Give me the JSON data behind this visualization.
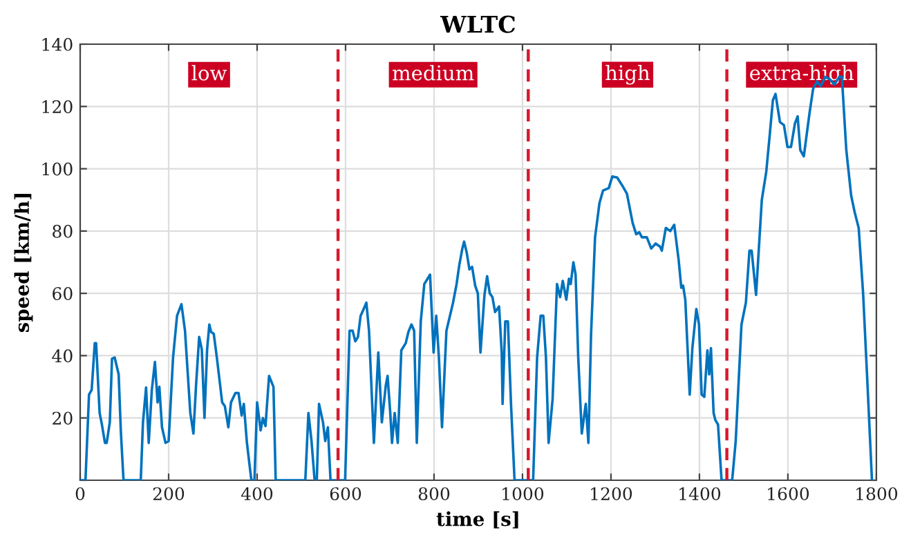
{
  "chart_data": {
    "type": "line",
    "title": "WLTC",
    "xlabel": "time [s]",
    "ylabel": "speed [km/h]",
    "x": [
      0,
      12,
      20,
      26,
      33,
      36,
      44,
      49,
      56,
      60,
      67,
      72,
      78,
      87,
      92,
      98,
      137,
      142,
      149,
      155,
      162,
      169,
      175,
      179,
      185,
      193,
      200,
      210,
      219,
      229,
      237,
      249,
      256,
      262,
      269,
      275,
      281,
      287,
      292,
      296,
      302,
      309,
      321,
      327,
      335,
      341,
      351,
      358,
      365,
      370,
      377,
      387,
      394,
      400,
      408,
      413,
      419,
      427,
      437,
      442,
      509,
      516,
      523,
      530,
      535,
      540,
      549,
      554,
      560,
      566,
      599,
      609,
      616,
      622,
      628,
      634,
      641,
      647,
      653,
      664,
      674,
      682,
      691,
      695,
      701,
      705,
      711,
      718,
      726,
      736,
      742,
      749,
      755,
      761,
      770,
      778,
      791,
      799,
      805,
      811,
      818,
      828,
      836,
      843,
      851,
      857,
      864,
      868,
      874,
      880,
      886,
      893,
      899,
      905,
      914,
      920,
      926,
      932,
      938,
      947,
      953,
      955,
      961,
      967,
      974,
      982,
      1024,
      1033,
      1041,
      1047,
      1053,
      1059,
      1068,
      1078,
      1085,
      1091,
      1099,
      1105,
      1109,
      1115,
      1120,
      1126,
      1134,
      1143,
      1149,
      1155,
      1164,
      1174,
      1182,
      1195,
      1203,
      1214,
      1226,
      1236,
      1249,
      1257,
      1264,
      1270,
      1281,
      1291,
      1301,
      1311,
      1315,
      1324,
      1334,
      1343,
      1353,
      1359,
      1363,
      1368,
      1378,
      1384,
      1393,
      1399,
      1405,
      1411,
      1418,
      1422,
      1426,
      1432,
      1436,
      1442,
      1450,
      1474,
      1482,
      1495,
      1505,
      1513,
      1518,
      1528,
      1534,
      1541,
      1551,
      1559,
      1566,
      1572,
      1582,
      1591,
      1599,
      1607,
      1616,
      1622,
      1628,
      1636,
      1643,
      1649,
      1657,
      1666,
      1674,
      1685,
      1695,
      1705,
      1716,
      1722,
      1732,
      1743,
      1751,
      1760,
      1770,
      1780,
      1790
    ],
    "series": [
      {
        "color": "#0072bd",
        "values": [
          0,
          0,
          27.5,
          29,
          44,
          44,
          21.6,
          18,
          12,
          12,
          18.6,
          39,
          39.4,
          34,
          15.6,
          0,
          0,
          18.6,
          29.8,
          12,
          29,
          38,
          25,
          30,
          17,
          12,
          12.6,
          39.4,
          52.8,
          56.5,
          48,
          21.6,
          15,
          30.5,
          46,
          42,
          20,
          42,
          50,
          47.6,
          47,
          39.4,
          25,
          23.8,
          17,
          25,
          28,
          28,
          20.8,
          24.5,
          12,
          0,
          0,
          25,
          16,
          20,
          17.4,
          33.5,
          30,
          0,
          0,
          21.6,
          12.6,
          0,
          0,
          24.5,
          18.6,
          12.6,
          17,
          0,
          0,
          48,
          48,
          44.6,
          46,
          52.8,
          55,
          57,
          48,
          12,
          41,
          18.6,
          30.5,
          33.5,
          21.6,
          12,
          21.6,
          12,
          41.7,
          44,
          47.6,
          50,
          48,
          12,
          51,
          63,
          66,
          41,
          52.8,
          39.4,
          17,
          48,
          52.8,
          57,
          63,
          69,
          74.4,
          76.6,
          73,
          67.7,
          68.5,
          62.5,
          60,
          41,
          59.5,
          65.5,
          60,
          58.8,
          54,
          55.8,
          41,
          24.5,
          51,
          51,
          24.5,
          0,
          0,
          39.4,
          52.8,
          52.8,
          39.4,
          12,
          26,
          63,
          58.8,
          64,
          58,
          64.7,
          63,
          70,
          66,
          39.4,
          15,
          24.5,
          12,
          47,
          78,
          89,
          93,
          93.8,
          97.5,
          97.2,
          94.5,
          92,
          82.6,
          79,
          79.6,
          78,
          78,
          74.4,
          76,
          75,
          73.7,
          81,
          80,
          82,
          70.7,
          61.8,
          62.5,
          58,
          27.5,
          42.4,
          55,
          50,
          27.5,
          26.8,
          41.7,
          34,
          42.4,
          21.6,
          19.3,
          17.9,
          0,
          0,
          12.6,
          50,
          57,
          73.7,
          73.7,
          59.5,
          73.7,
          90,
          99,
          111,
          122,
          124,
          115,
          114,
          107,
          107,
          114.6,
          116.8,
          106,
          104,
          111.6,
          118,
          125.7,
          128,
          126.5,
          129.5,
          128.7,
          127,
          129.5,
          129.5,
          106,
          91.4,
          86,
          81,
          60,
          30.5,
          0
        ]
      }
    ],
    "xlim": [
      0,
      1800
    ],
    "ylim": [
      0,
      140
    ],
    "xticks": [
      0,
      200,
      400,
      600,
      800,
      1000,
      1200,
      1400,
      1600,
      1800
    ],
    "yticks": [
      {
        "value": 0,
        "label": null
      },
      20,
      40,
      60,
      80,
      100,
      120,
      140
    ],
    "grid": true,
    "legend": false,
    "marker": "none",
    "line_style": "solid",
    "ref_lines": [
      {
        "axis": "x",
        "value": 583,
        "color": "#d7192d",
        "line_style": "dashed"
      },
      {
        "axis": "x",
        "value": 1013,
        "color": "#d7192d",
        "line_style": "dashed"
      },
      {
        "axis": "x",
        "value": 1462,
        "color": "#d7192d",
        "line_style": "dashed"
      }
    ],
    "annotations": [
      "low",
      "medium",
      "high",
      "extra-high"
    ]
  }
}
